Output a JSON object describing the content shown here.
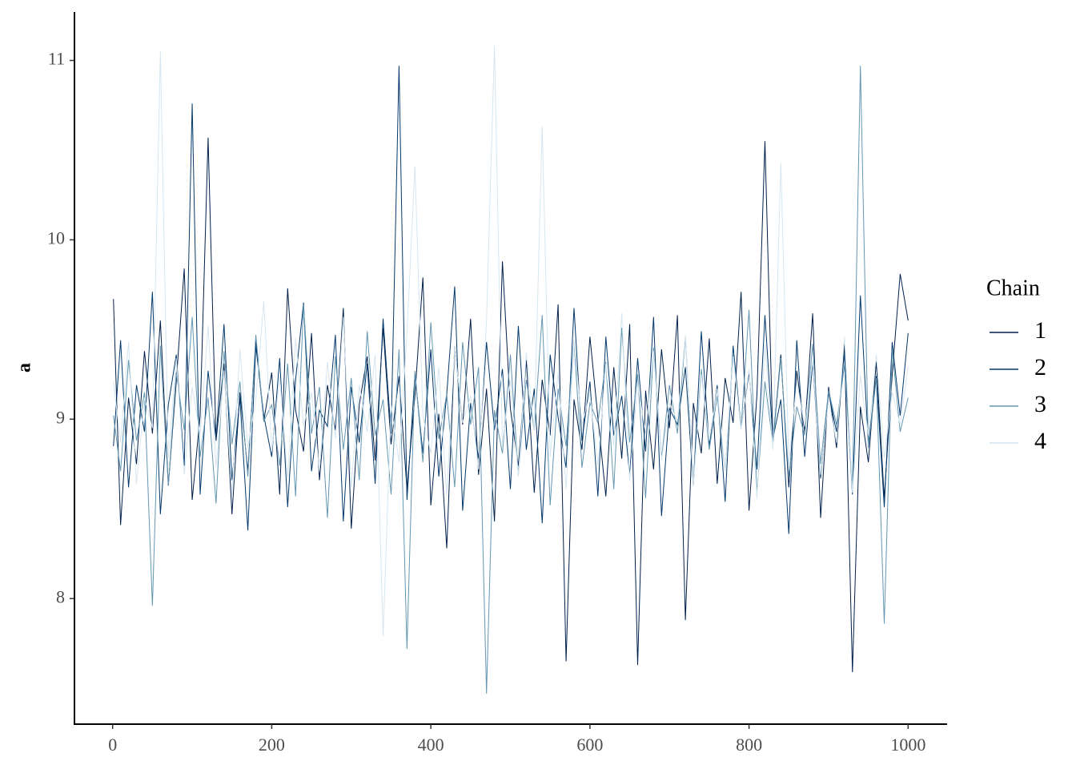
{
  "chart_data": {
    "type": "line",
    "y_label": "a",
    "legend_title": "Chain",
    "legend": "right",
    "grid": false,
    "x": [
      1,
      10,
      20,
      30,
      40,
      50,
      60,
      70,
      80,
      90,
      100,
      110,
      120,
      130,
      140,
      150,
      160,
      170,
      180,
      190,
      200,
      210,
      220,
      230,
      240,
      250,
      260,
      270,
      280,
      290,
      300,
      310,
      320,
      330,
      340,
      350,
      360,
      370,
      380,
      390,
      400,
      410,
      420,
      430,
      440,
      450,
      460,
      470,
      480,
      490,
      500,
      510,
      520,
      530,
      540,
      550,
      560,
      570,
      580,
      590,
      600,
      610,
      620,
      630,
      640,
      650,
      660,
      670,
      680,
      690,
      700,
      710,
      720,
      730,
      740,
      750,
      760,
      770,
      780,
      790,
      800,
      810,
      820,
      830,
      840,
      850,
      860,
      870,
      880,
      890,
      900,
      910,
      920,
      930,
      940,
      950,
      960,
      970,
      980,
      990,
      1000
    ],
    "series": [
      {
        "name": "1",
        "color": "#011f4b",
        "values": [
          9.67,
          8.41,
          9.12,
          8.75,
          9.38,
          8.92,
          9.55,
          8.63,
          9.21,
          9.84,
          8.55,
          9.02,
          10.57,
          8.88,
          9.31,
          8.47,
          9.15,
          8.71,
          9.44,
          8.99,
          9.26,
          8.58,
          9.73,
          9.05,
          8.82,
          9.48,
          8.66,
          9.19,
          8.94,
          9.62,
          8.39,
          9.08,
          9.35,
          8.77,
          9.51,
          8.86,
          9.24,
          8.61,
          9.13,
          9.79,
          8.52,
          9.03,
          8.28,
          9.41,
          8.97,
          9.56,
          8.69,
          9.17,
          8.43,
          9.88,
          9.06,
          8.74,
          9.33,
          8.59,
          9.22,
          8.91,
          9.64,
          7.65,
          9.11,
          8.83,
          9.46,
          9.01,
          8.57,
          9.29,
          8.78,
          9.53,
          7.63,
          9.16,
          8.72,
          9.39,
          8.95,
          9.58,
          7.88,
          9.09,
          8.81,
          9.45,
          8.64,
          9.23,
          8.98,
          9.71,
          8.49,
          9.14,
          10.55,
          8.87,
          9.36,
          8.62,
          9.27,
          8.93,
          9.59,
          8.45,
          9.18,
          8.84,
          9.42,
          7.59,
          9.07,
          8.76,
          9.32,
          8.56,
          9.25,
          9.81,
          9.55
        ]
      },
      {
        "name": "2",
        "color": "#03396c",
        "values": [
          8.85,
          9.44,
          8.62,
          9.19,
          8.93,
          9.71,
          8.47,
          9.08,
          9.36,
          8.74,
          10.76,
          8.58,
          9.27,
          8.89,
          9.53,
          8.66,
          9.12,
          8.38,
          9.41,
          9.02,
          8.79,
          9.34,
          8.51,
          9.22,
          9.65,
          8.71,
          9.05,
          8.96,
          9.47,
          8.43,
          9.18,
          8.87,
          9.31,
          8.64,
          9.56,
          8.92,
          10.97,
          8.55,
          9.25,
          8.81,
          9.39,
          8.68,
          9.14,
          9.74,
          8.49,
          9.09,
          8.78,
          9.43,
          8.94,
          9.28,
          8.61,
          9.52,
          8.83,
          9.17,
          8.42,
          9.36,
          9.01,
          8.73,
          9.62,
          8.88,
          9.21,
          8.57,
          9.46,
          8.91,
          9.13,
          8.69,
          9.34,
          8.82,
          9.57,
          8.46,
          9.06,
          8.97,
          9.29,
          8.63,
          9.49,
          8.85,
          9.19,
          8.54,
          9.41,
          8.95,
          9.26,
          8.72,
          9.58,
          8.89,
          9.11,
          8.36,
          9.44,
          8.79,
          9.32,
          8.67,
          9.15,
          8.93,
          9.37,
          8.58,
          9.69,
          8.86,
          9.24,
          8.51,
          9.43,
          9.02,
          9.48
        ]
      },
      {
        "name": "3",
        "color": "#6497b1",
        "values": [
          9.02,
          8.71,
          9.33,
          8.88,
          9.15,
          7.96,
          9.41,
          8.63,
          9.26,
          8.94,
          9.57,
          8.79,
          9.12,
          8.53,
          9.38,
          8.86,
          9.21,
          8.68,
          9.47,
          8.99,
          9.08,
          8.74,
          9.31,
          8.57,
          9.64,
          8.92,
          9.18,
          8.45,
          9.35,
          8.83,
          9.23,
          8.66,
          9.49,
          8.91,
          9.11,
          8.58,
          9.39,
          7.72,
          9.27,
          8.76,
          9.54,
          8.89,
          9.14,
          8.62,
          9.43,
          8.97,
          9.29,
          7.47,
          9.05,
          8.81,
          9.36,
          8.69,
          9.22,
          8.94,
          9.58,
          8.52,
          9.17,
          8.85,
          9.44,
          8.73,
          9.09,
          8.98,
          9.32,
          8.61,
          9.51,
          8.87,
          9.25,
          8.56,
          9.4,
          8.78,
          9.19,
          8.92,
          9.46,
          8.64,
          9.28,
          8.83,
          9.13,
          8.71,
          9.37,
          8.95,
          9.61,
          8.59,
          9.21,
          8.86,
          9.34,
          8.68,
          9.07,
          8.91,
          9.42,
          8.75,
          9.16,
          8.97,
          9.3,
          8.62,
          10.97,
          8.84,
          9.23,
          7.86,
          9.39,
          8.93,
          9.12
        ]
      },
      {
        "name": "4",
        "color": "#d6e6f0",
        "values": [
          9.21,
          8.87,
          9.43,
          8.64,
          9.12,
          8.95,
          11.05,
          8.78,
          9.34,
          8.69,
          9.18,
          8.91,
          9.52,
          8.73,
          9.27,
          8.58,
          9.39,
          8.84,
          9.11,
          9.66,
          8.82,
          9.24,
          8.67,
          9.45,
          8.96,
          9.15,
          8.71,
          9.32,
          8.89,
          9.57,
          8.62,
          9.19,
          8.93,
          9.36,
          7.79,
          9.08,
          8.76,
          9.48,
          10.41,
          9.02,
          8.81,
          9.29,
          8.57,
          9.41,
          8.98,
          9.13,
          8.72,
          9.55,
          11.08,
          8.86,
          9.22,
          8.68,
          9.37,
          8.94,
          10.63,
          8.79,
          9.26,
          8.61,
          9.44,
          8.97,
          9.14,
          8.74,
          9.31,
          8.85,
          9.59,
          8.66,
          9.2,
          8.92,
          9.38,
          8.77,
          9.09,
          8.99,
          9.47,
          8.63,
          9.25,
          8.88,
          9.17,
          8.71,
          9.35,
          8.94,
          9.28,
          8.56,
          9.42,
          8.83,
          10.43,
          8.75,
          9.21,
          8.96,
          9.33,
          8.69,
          9.11,
          8.87,
          9.46,
          8.59,
          9.24,
          8.91,
          9.36,
          8.78,
          9.15,
          8.97,
          9.29
        ]
      }
    ],
    "xlim": [
      -48,
      1049
    ],
    "ylim": [
      7.3,
      11.27
    ],
    "xticks": [
      0,
      200,
      400,
      600,
      800,
      1000
    ],
    "yticks": [
      8,
      9,
      10,
      11
    ]
  }
}
